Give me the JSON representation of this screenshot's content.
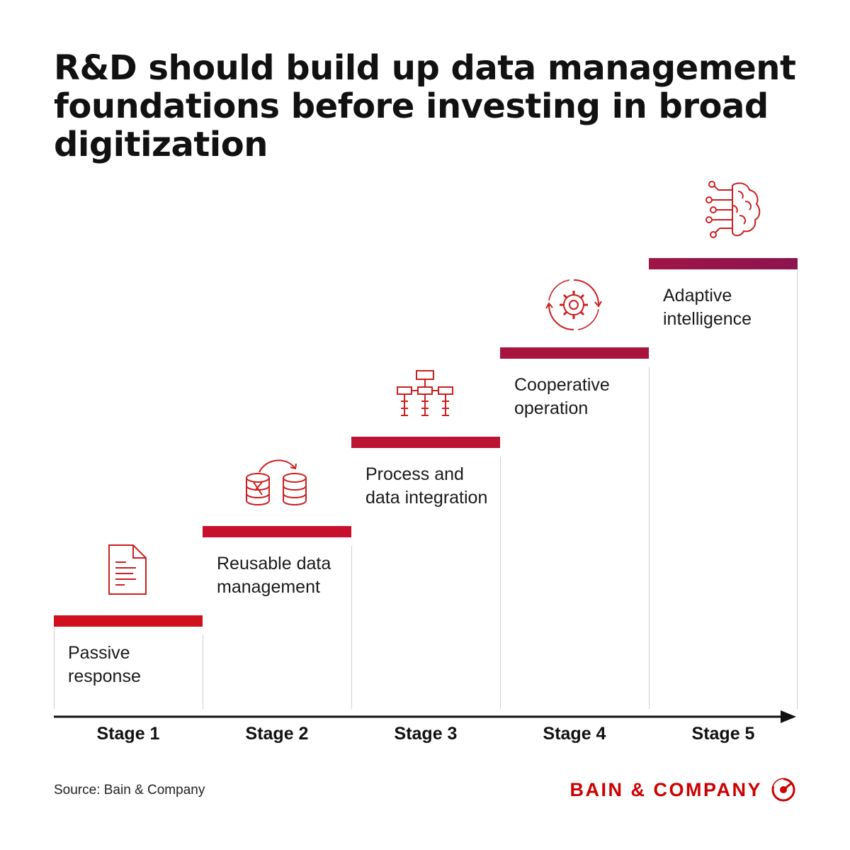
{
  "title": "R&D should build up data management foundations before investing in broad digitization",
  "stages": [
    {
      "stage": "Stage 1",
      "label": "Passive response",
      "icon": "document-icon",
      "bar_color": "#d0101d"
    },
    {
      "stage": "Stage 2",
      "label": "Reusable data management",
      "icon": "database-sync-icon",
      "bar_color": "#c8102e"
    },
    {
      "stage": "Stage 3",
      "label": "Process and data integration",
      "icon": "process-hierarchy-icon",
      "bar_color": "#bc1233"
    },
    {
      "stage": "Stage 4",
      "label": "Cooperative operation",
      "icon": "gear-cycle-icon",
      "bar_color": "#a8143e"
    },
    {
      "stage": "Stage 5",
      "label": "Adaptive intelligence",
      "icon": "brain-circuit-icon",
      "bar_color": "#8c1450"
    }
  ],
  "source": "Source: Bain & Company",
  "brand": "BAIN & COMPANY",
  "colors": {
    "accent": "#cc0000",
    "text": "#111111",
    "divider": "#cfcfcf"
  }
}
